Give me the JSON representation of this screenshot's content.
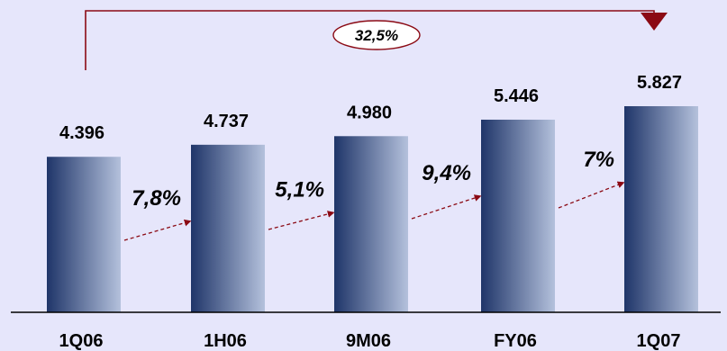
{
  "chart_data": {
    "type": "bar",
    "categories": [
      "1Q06",
      "1H06",
      "9M06",
      "FY06",
      "1Q07"
    ],
    "values": [
      4396,
      4737,
      4980,
      5446,
      5827
    ],
    "value_labels": [
      "4.396",
      "4.737",
      "4.980",
      "5.446",
      "5.827"
    ],
    "growth_labels": [
      "7,8%",
      "5,1%",
      "9,4%",
      "7%"
    ],
    "total_growth_label": "32,5%",
    "colors": {
      "background": "#e6e6fb",
      "bar_dark": "#1f3569",
      "bar_light": "#b4c1dc",
      "arrow": "#8b0a14"
    }
  }
}
